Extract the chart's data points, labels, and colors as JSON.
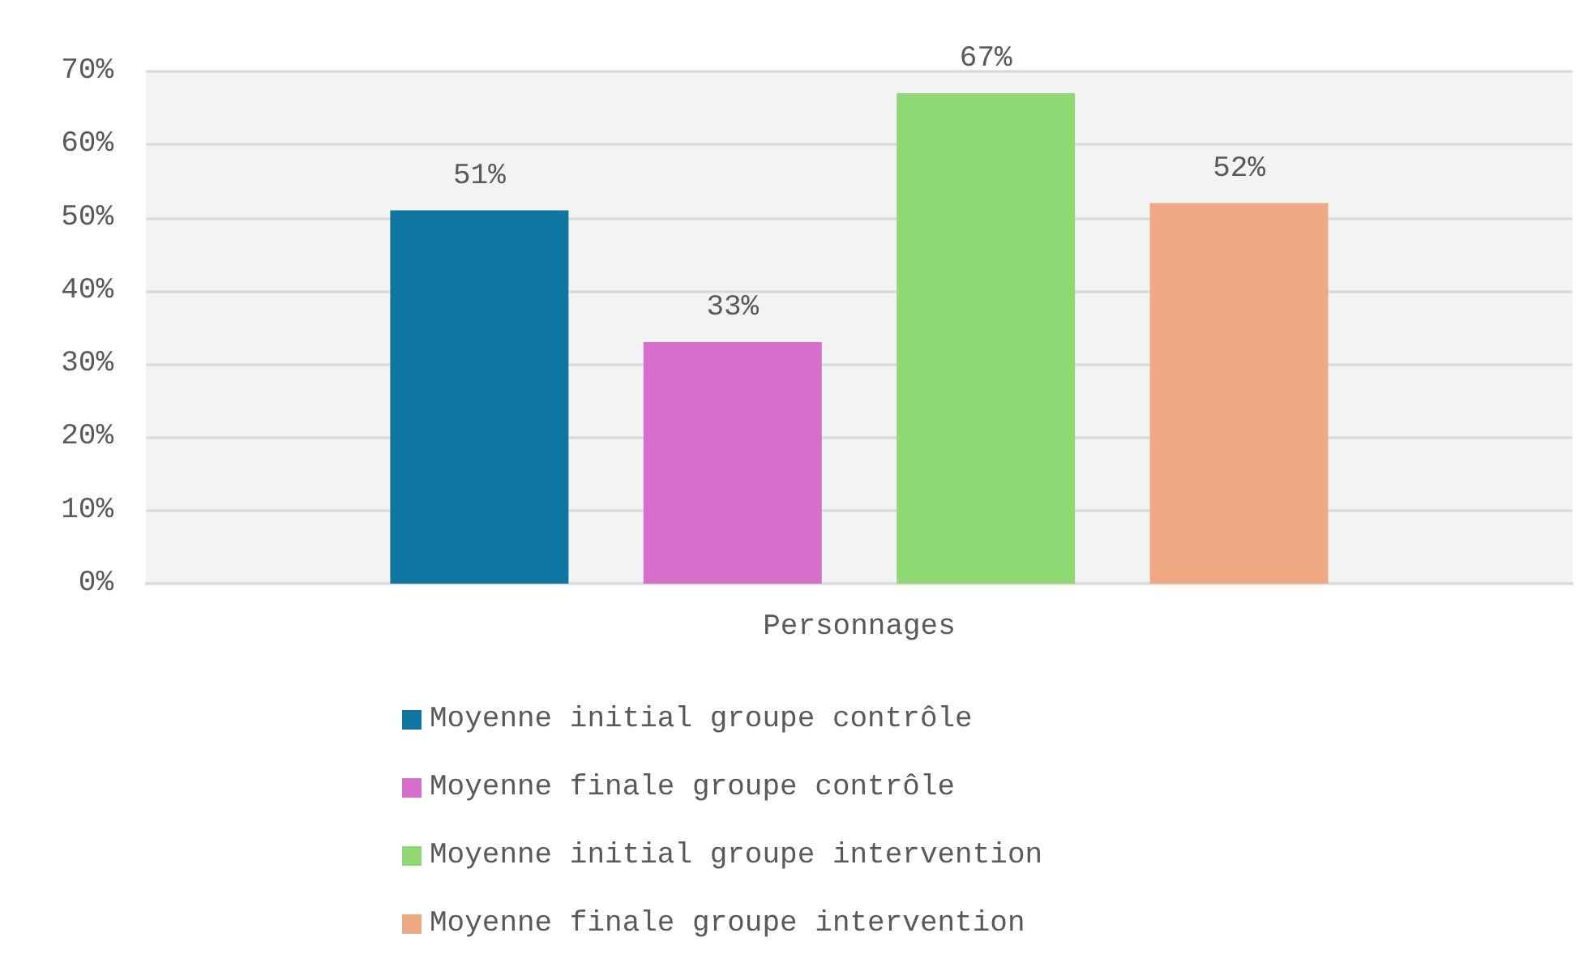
{
  "chart_data": {
    "type": "bar",
    "categories": [
      "Personnages"
    ],
    "series": [
      {
        "name": "Moyenne initial groupe contrôle",
        "color": "#0e76a0",
        "values": [
          51
        ],
        "value_labels": [
          "51%"
        ]
      },
      {
        "name": "Moyenne finale groupe contrôle",
        "color": "#d56fcb",
        "values": [
          33
        ],
        "value_labels": [
          "33%"
        ]
      },
      {
        "name": "Moyenne initial groupe intervention",
        "color": "#8fd975",
        "values": [
          67
        ],
        "value_labels": [
          "67%"
        ]
      },
      {
        "name": "Moyenne finale groupe intervention",
        "color": "#f0a985",
        "values": [
          52
        ],
        "value_labels": [
          "52%"
        ]
      }
    ],
    "ylim": [
      0,
      70
    ],
    "yticks": [
      {
        "value": 0,
        "label": "0%"
      },
      {
        "value": 10,
        "label": "10%"
      },
      {
        "value": 20,
        "label": "20%"
      },
      {
        "value": 30,
        "label": "30%"
      },
      {
        "value": 40,
        "label": "40%"
      },
      {
        "value": 50,
        "label": "50%"
      },
      {
        "value": 60,
        "label": "60%"
      },
      {
        "value": 70,
        "label": "70%"
      }
    ],
    "grid": "y",
    "legend": "bottom"
  }
}
